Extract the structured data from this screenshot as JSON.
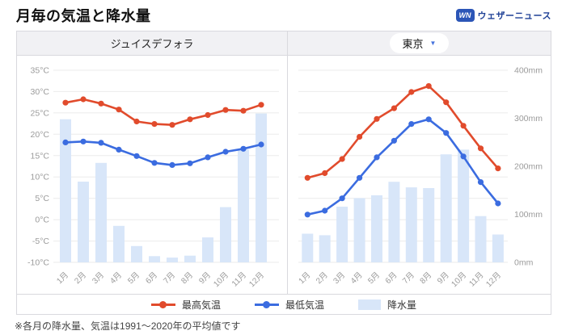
{
  "title": "月毎の気温と降水量",
  "logo": {
    "mark": "WN",
    "text": "ウェザーニュース"
  },
  "panels": [
    {
      "title": "ジュイスデフォラ",
      "selector": false
    },
    {
      "title": "東京",
      "selector": true
    }
  ],
  "legend": [
    {
      "label": "最高気温",
      "type": "line",
      "color": "#e14b2c"
    },
    {
      "label": "最低気温",
      "type": "line",
      "color": "#3b6ce0"
    },
    {
      "label": "降水量",
      "type": "bar",
      "color": "#d8e6f9"
    }
  ],
  "footnote": "※各月の降水量、気温は1991〜2020年の平均値です",
  "colors": {
    "max_temp": "#e14b2c",
    "min_temp": "#3b6ce0",
    "precip_bar": "#d8e6f9",
    "gridline": "#ebebeb",
    "axis_text": "#9b9b9b",
    "header_bg": "#f1f1f4",
    "border": "#d9d9de",
    "caret": "#4472dd"
  },
  "chart_data": [
    {
      "type": "bar",
      "subtype": "combo-line-bar",
      "title": "ジュイスデフォラ",
      "categories": [
        "1月",
        "2月",
        "3月",
        "4月",
        "5月",
        "6月",
        "7月",
        "8月",
        "9月",
        "10月",
        "11月",
        "12月"
      ],
      "series": [
        {
          "name": "最高気温",
          "type": "line",
          "axis": "left",
          "color": "#e14b2c",
          "values": [
            27.4,
            28.2,
            27.2,
            25.8,
            23.0,
            22.4,
            22.2,
            23.5,
            24.5,
            25.7,
            25.5,
            26.9
          ]
        },
        {
          "name": "最低気温",
          "type": "line",
          "axis": "left",
          "color": "#3b6ce0",
          "values": [
            18.1,
            18.3,
            18.0,
            16.4,
            14.9,
            13.3,
            12.8,
            13.2,
            14.6,
            15.9,
            16.6,
            17.6
          ]
        },
        {
          "name": "降水量",
          "type": "bar",
          "axis": "right",
          "color": "#d8e6f9",
          "values": [
            298,
            168,
            207,
            76,
            34,
            13,
            10,
            14,
            52,
            115,
            235,
            310
          ]
        }
      ],
      "y_left": {
        "unit": "°C",
        "min": -10,
        "max": 35,
        "step": 5,
        "show": true,
        "ticks": [
          35,
          30,
          25,
          20,
          15,
          10,
          5,
          0,
          -5,
          -10
        ]
      },
      "y_right": {
        "unit": "mm",
        "min": 0,
        "max": 400,
        "step": 100,
        "show": false,
        "ticks": [
          400,
          300,
          200,
          100,
          0
        ]
      },
      "grid": true,
      "legend_position": "bottom"
    },
    {
      "type": "bar",
      "subtype": "combo-line-bar",
      "title": "東京",
      "categories": [
        "1月",
        "2月",
        "3月",
        "4月",
        "5月",
        "6月",
        "7月",
        "8月",
        "9月",
        "10月",
        "11月",
        "12月"
      ],
      "series": [
        {
          "name": "最高気温",
          "type": "line",
          "axis": "left",
          "color": "#e14b2c",
          "values": [
            9.8,
            10.9,
            14.2,
            19.4,
            23.6,
            26.1,
            29.9,
            31.3,
            27.5,
            22.0,
            16.7,
            12.0
          ]
        },
        {
          "name": "最低気温",
          "type": "line",
          "axis": "left",
          "color": "#3b6ce0",
          "values": [
            1.2,
            2.1,
            5.0,
            9.8,
            14.6,
            18.5,
            22.4,
            23.5,
            20.3,
            14.8,
            8.8,
            3.8
          ]
        },
        {
          "name": "降水量",
          "type": "bar",
          "axis": "right",
          "color": "#d8e6f9",
          "values": [
            59.7,
            56.5,
            116.0,
            133.7,
            139.7,
            167.8,
            156.2,
            154.7,
            224.9,
            234.8,
            96.3,
            57.9
          ]
        }
      ],
      "y_left": {
        "unit": "°C",
        "min": -10,
        "max": 35,
        "step": 5,
        "show": false,
        "ticks": [
          35,
          30,
          25,
          20,
          15,
          10,
          5,
          0,
          -5,
          -10
        ]
      },
      "y_right": {
        "unit": "mm",
        "min": 0,
        "max": 400,
        "step": 100,
        "show": true,
        "ticks": [
          400,
          300,
          200,
          100,
          0
        ]
      },
      "grid": true,
      "legend_position": "bottom"
    }
  ]
}
